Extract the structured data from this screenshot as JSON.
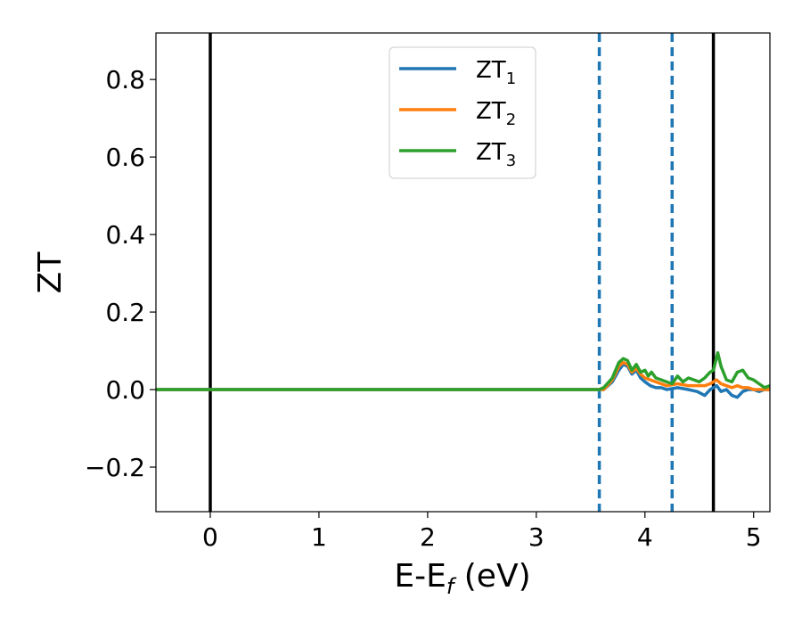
{
  "chart_data": {
    "type": "line",
    "title": "",
    "xlabel": {
      "main": "E-E",
      "sub": "f",
      "unit": " (eV)"
    },
    "ylabel": "ZT",
    "xlim": [
      -0.5,
      5.15
    ],
    "ylim": [
      -0.315,
      0.92
    ],
    "x_ticks": [
      0,
      1,
      2,
      3,
      4,
      5
    ],
    "y_ticks": [
      -0.2,
      0.0,
      0.2,
      0.4,
      0.6,
      0.8
    ],
    "x_tick_labels": [
      "0",
      "1",
      "2",
      "3",
      "4",
      "5"
    ],
    "y_tick_labels": [
      "−0.2",
      "0.0",
      "0.2",
      "0.4",
      "0.6",
      "0.8"
    ],
    "grid": false,
    "legend_position": "top-center",
    "vertical_lines": [
      {
        "x": 0.0,
        "style": "solid",
        "color": "#000000"
      },
      {
        "x": 3.58,
        "style": "dashed",
        "color": "#1f77b4"
      },
      {
        "x": 4.25,
        "style": "dashed",
        "color": "#1f77b4"
      },
      {
        "x": 4.63,
        "style": "solid",
        "color": "#000000"
      }
    ],
    "series": [
      {
        "name": "ZT",
        "subscript": "1",
        "color": "#1f77b4",
        "x": [
          -0.5,
          3.58,
          3.62,
          3.7,
          3.76,
          3.8,
          3.84,
          3.88,
          3.92,
          3.96,
          4.0,
          4.05,
          4.1,
          4.15,
          4.2,
          4.3,
          4.4,
          4.48,
          4.55,
          4.6,
          4.66,
          4.7,
          4.75,
          4.8,
          4.85,
          4.9,
          4.95,
          5.0,
          5.05,
          5.1,
          5.15
        ],
        "y": [
          0.0,
          0.0,
          0.0,
          0.02,
          0.05,
          0.065,
          0.06,
          0.04,
          0.05,
          0.03,
          0.02,
          0.01,
          0.005,
          0.005,
          0.0,
          0.005,
          0.0,
          -0.005,
          -0.015,
          0.0,
          0.01,
          -0.005,
          0.0,
          -0.015,
          -0.02,
          -0.005,
          0.0,
          0.0,
          -0.005,
          0.0,
          0.0
        ]
      },
      {
        "name": "ZT",
        "subscript": "2",
        "color": "#ff7f0e",
        "x": [
          -0.5,
          3.58,
          3.62,
          3.7,
          3.76,
          3.8,
          3.84,
          3.88,
          3.92,
          3.96,
          4.0,
          4.05,
          4.1,
          4.15,
          4.2,
          4.3,
          4.4,
          4.48,
          4.55,
          4.6,
          4.66,
          4.7,
          4.75,
          4.8,
          4.85,
          4.9,
          4.95,
          5.0,
          5.05,
          5.1,
          5.15
        ],
        "y": [
          0.0,
          0.0,
          0.0,
          0.025,
          0.06,
          0.07,
          0.065,
          0.045,
          0.055,
          0.04,
          0.03,
          0.025,
          0.02,
          0.015,
          0.01,
          0.015,
          0.01,
          0.01,
          0.01,
          0.015,
          0.025,
          0.015,
          0.01,
          0.005,
          0.01,
          0.005,
          0.005,
          0.0,
          0.0,
          0.0,
          0.0
        ]
      },
      {
        "name": "ZT",
        "subscript": "3",
        "color": "#2ca02c",
        "x": [
          -0.5,
          3.58,
          3.62,
          3.7,
          3.76,
          3.8,
          3.84,
          3.88,
          3.92,
          3.96,
          4.0,
          4.03,
          4.06,
          4.1,
          4.15,
          4.2,
          4.25,
          4.3,
          4.35,
          4.4,
          4.45,
          4.5,
          4.55,
          4.6,
          4.63,
          4.67,
          4.7,
          4.75,
          4.8,
          4.85,
          4.9,
          4.95,
          5.0,
          5.05,
          5.1,
          5.15
        ],
        "y": [
          0.0,
          0.0,
          0.005,
          0.03,
          0.07,
          0.08,
          0.075,
          0.05,
          0.065,
          0.045,
          0.05,
          0.035,
          0.045,
          0.03,
          0.025,
          0.02,
          0.015,
          0.035,
          0.02,
          0.03,
          0.025,
          0.02,
          0.03,
          0.045,
          0.05,
          0.095,
          0.06,
          0.025,
          0.02,
          0.045,
          0.05,
          0.03,
          0.025,
          0.015,
          0.005,
          0.01
        ]
      }
    ]
  }
}
